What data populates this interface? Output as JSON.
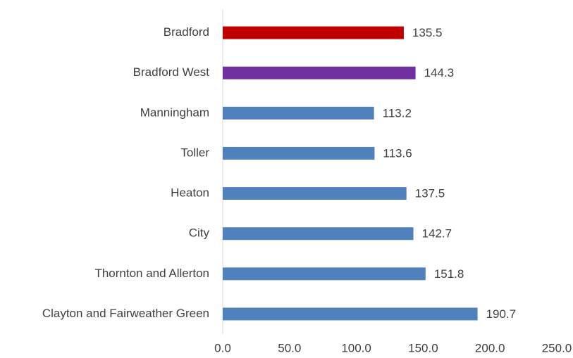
{
  "chart_data": {
    "type": "bar",
    "orientation": "horizontal",
    "categories": [
      "Bradford",
      "Bradford West",
      "Manningham",
      "Toller",
      "Heaton",
      "City",
      "Thornton and Allerton",
      "Clayton and Fairweather Green"
    ],
    "values": [
      135.5,
      144.3,
      113.2,
      113.6,
      137.5,
      142.7,
      151.8,
      190.7
    ],
    "colors": [
      "#c00000",
      "#7030a0",
      "#4f81bd",
      "#4f81bd",
      "#4f81bd",
      "#4f81bd",
      "#4f81bd",
      "#4f81bd"
    ],
    "xlim": [
      0,
      250
    ],
    "xticks": [
      {
        "value": 0,
        "label": "0.0"
      },
      {
        "value": 50,
        "label": "50.0"
      },
      {
        "value": 100,
        "label": "100.0"
      },
      {
        "value": 150,
        "label": "150.0"
      },
      {
        "value": 200,
        "label": "200.0"
      },
      {
        "value": 250,
        "label": "250.0"
      }
    ],
    "grid": false
  }
}
